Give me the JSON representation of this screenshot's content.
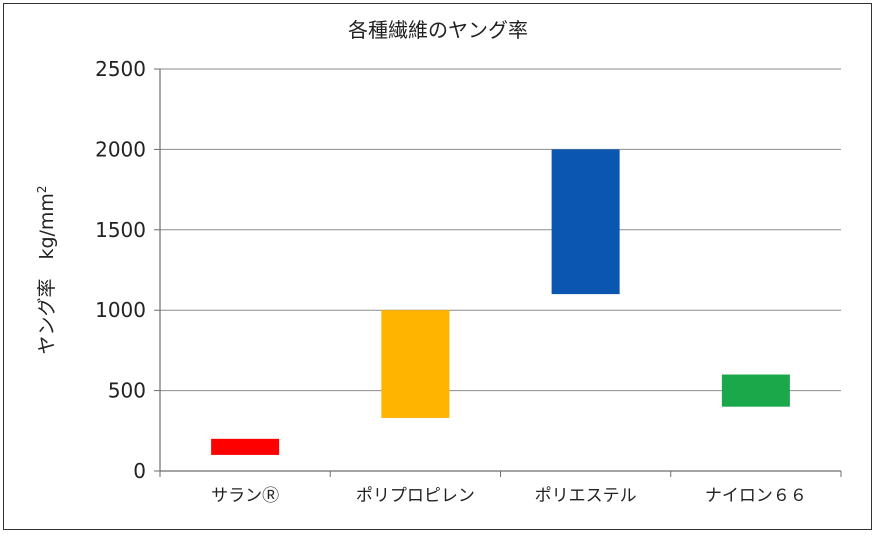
{
  "chart_data": {
    "type": "floating-bar",
    "title": "各種繊維のヤング率",
    "ylabel": "ヤング率　kg/mm",
    "ylabel_sup": "2",
    "xlabel": "",
    "ylim": [
      0,
      2500
    ],
    "yticks": [
      0,
      500,
      1000,
      1500,
      2000,
      2500
    ],
    "grid": true,
    "categories": [
      "サランⓇ",
      "ポリプロピレン",
      "ポリエステル",
      "ナイロン６６"
    ],
    "ranges": [
      [
        100,
        200
      ],
      [
        330,
        1000
      ],
      [
        1100,
        2000
      ],
      [
        400,
        600
      ]
    ],
    "colors": [
      "#ff0000",
      "#ffb400",
      "#0a56b0",
      "#1aa84a"
    ]
  }
}
